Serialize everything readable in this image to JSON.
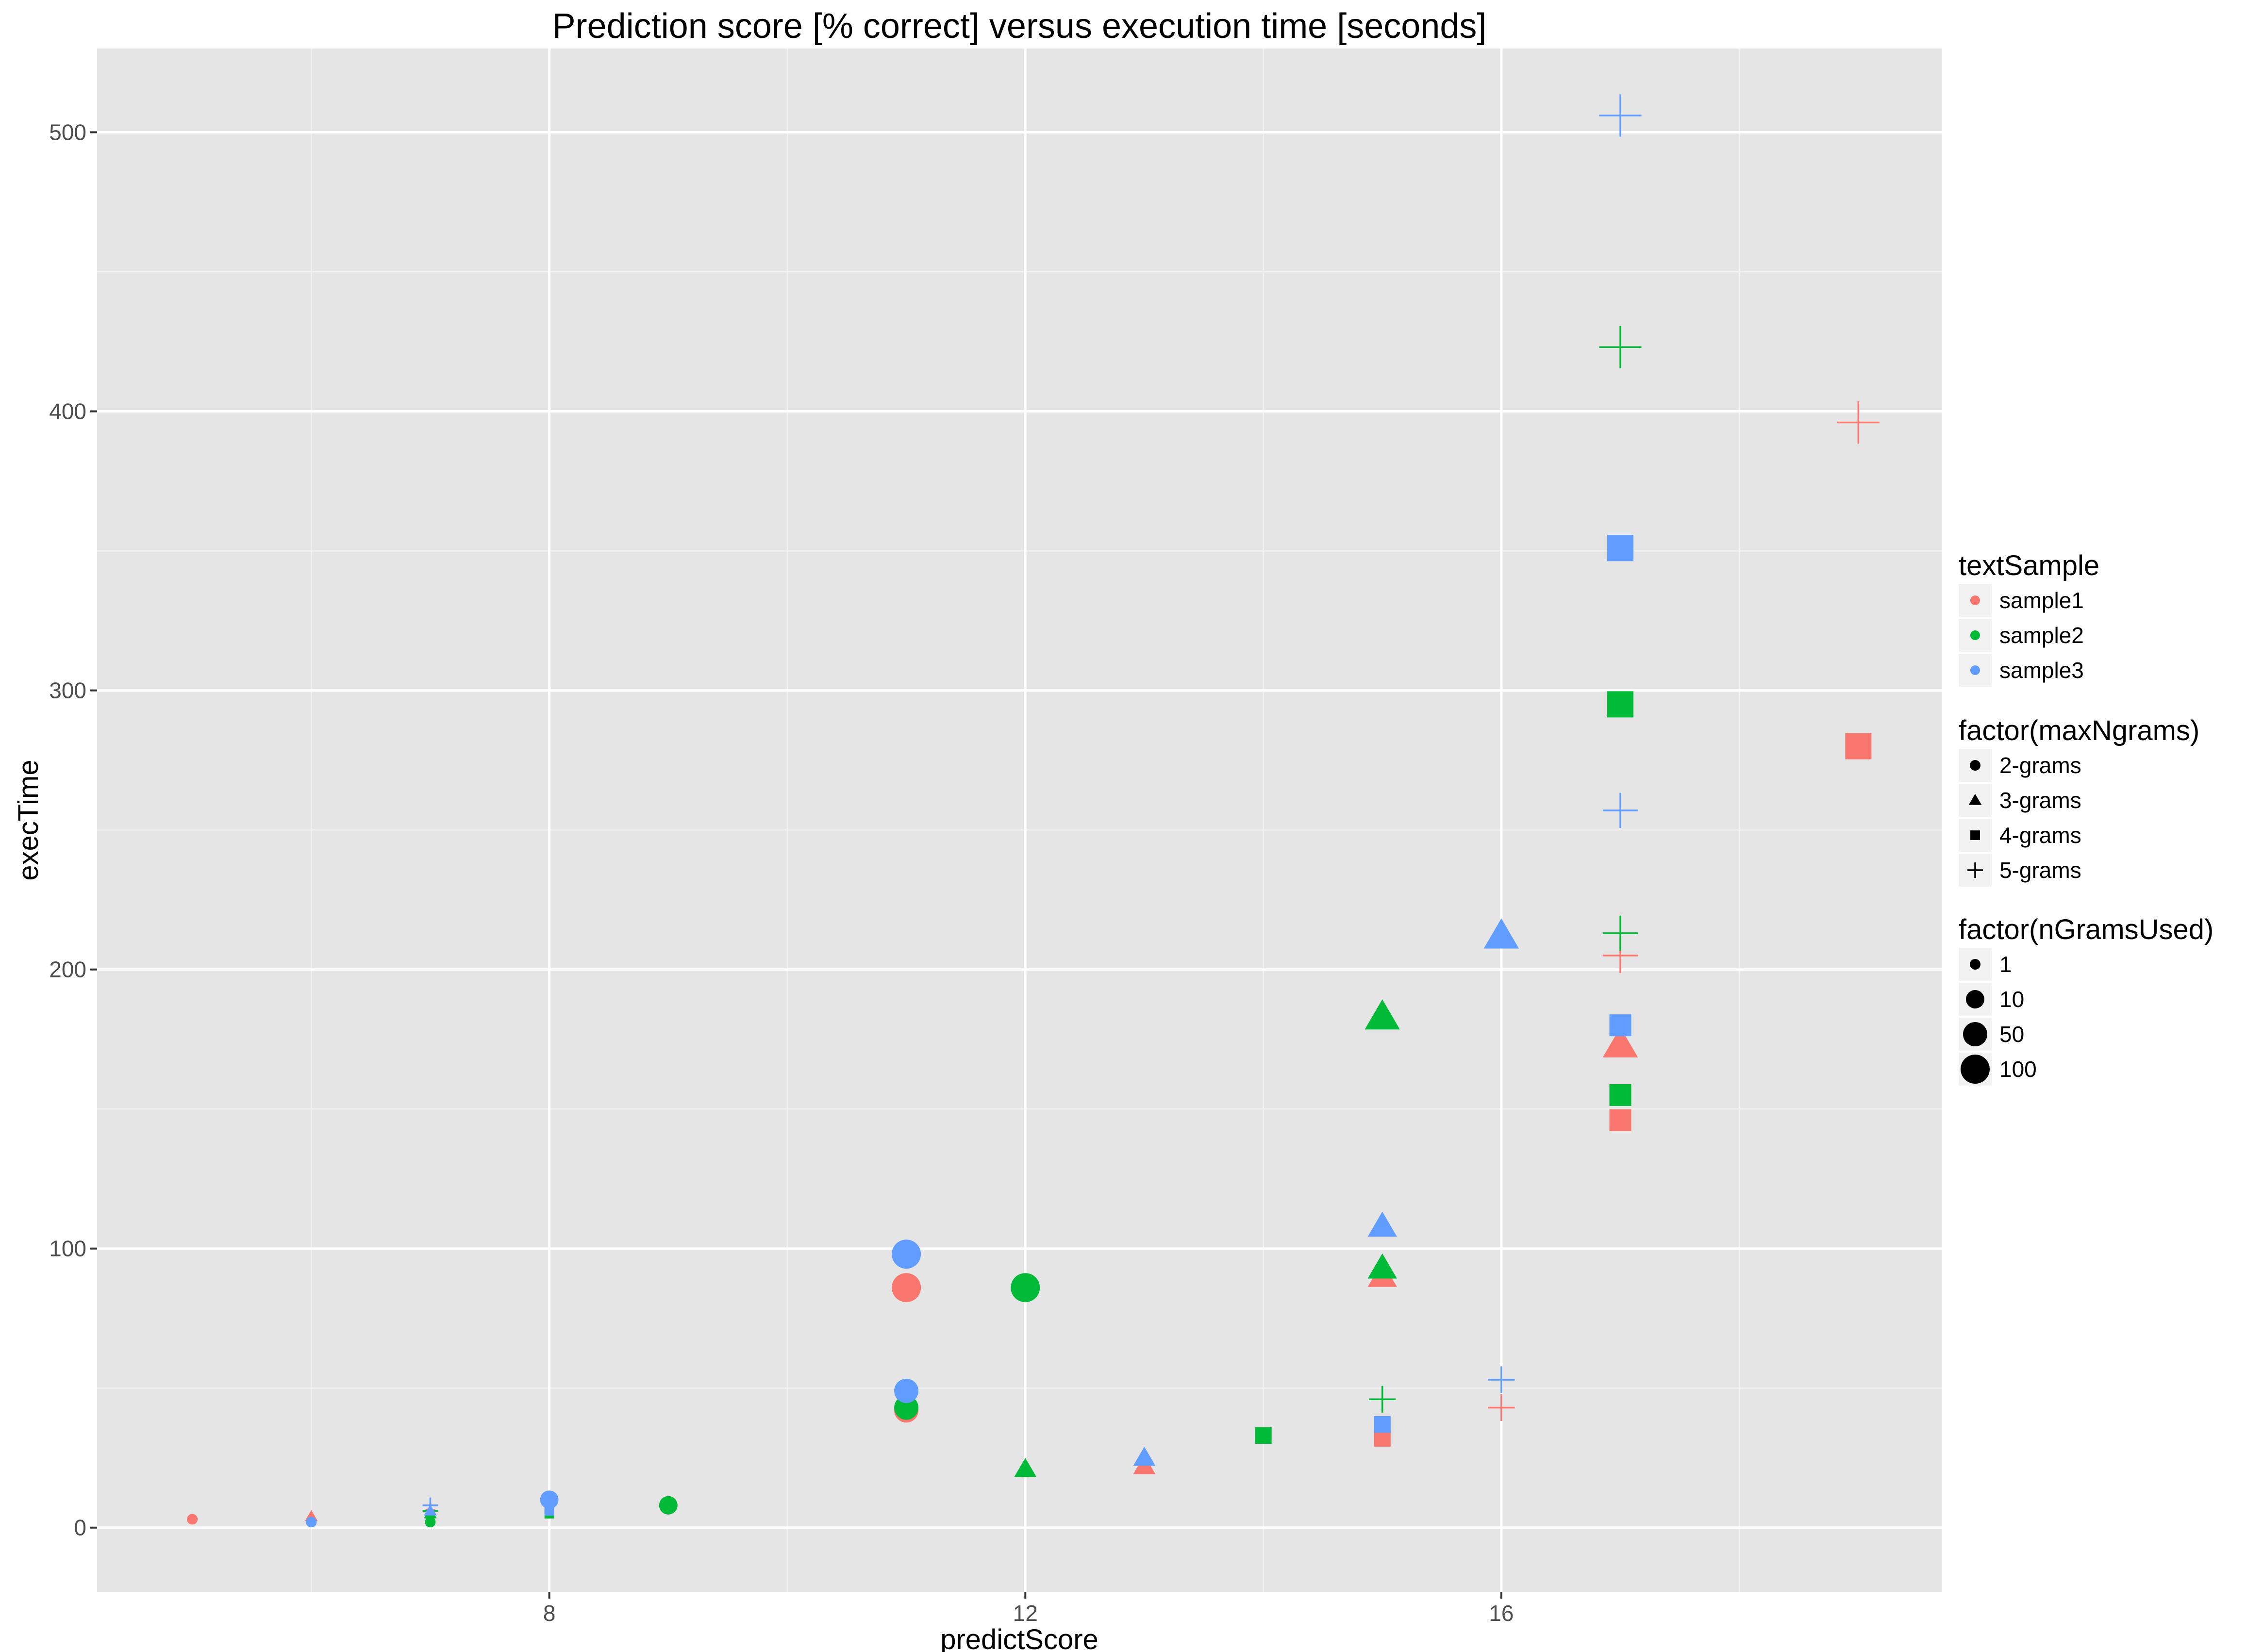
{
  "chart_data": {
    "type": "scatter",
    "title": "Prediction score [% correct] versus execution time [seconds]",
    "xlabel": "predictScore",
    "ylabel": "execTime",
    "xlim": [
      4.2,
      19.7
    ],
    "ylim": [
      -23,
      530
    ],
    "x_ticks": [
      8,
      12,
      16
    ],
    "x_minor_ticks": [
      6,
      10,
      14,
      18
    ],
    "y_ticks": [
      0,
      100,
      200,
      300,
      400,
      500
    ],
    "y_minor_ticks": [
      50,
      150,
      250,
      350,
      450
    ],
    "grid": true,
    "legend_position": "right",
    "legends": [
      {
        "title": "textSample",
        "kind": "color",
        "entries": [
          {
            "label": "sample1",
            "color": "#F8766D"
          },
          {
            "label": "sample2",
            "color": "#00BA38"
          },
          {
            "label": "sample3",
            "color": "#619CFF"
          }
        ]
      },
      {
        "title": "factor(maxNgrams)",
        "kind": "shape",
        "entries": [
          {
            "label": "2-grams",
            "shape": "circle"
          },
          {
            "label": "3-grams",
            "shape": "triangle"
          },
          {
            "label": "4-grams",
            "shape": "square"
          },
          {
            "label": "5-grams",
            "shape": "plus"
          }
        ]
      },
      {
        "title": "factor(nGramsUsed)",
        "kind": "size",
        "entries": [
          {
            "label": "1",
            "size": 1
          },
          {
            "label": "10",
            "size": 10
          },
          {
            "label": "50",
            "size": 50
          },
          {
            "label": "100",
            "size": 100
          }
        ]
      }
    ],
    "series": [
      {
        "name": "sample1",
        "color": "#F8766D",
        "points": [
          {
            "x": 5,
            "y": 3,
            "shape": "circle",
            "size": 1
          },
          {
            "x": 11,
            "y": 42,
            "shape": "circle",
            "size": 50
          },
          {
            "x": 11,
            "y": 86,
            "shape": "circle",
            "size": 100
          },
          {
            "x": 9,
            "y": 8,
            "shape": "circle",
            "size": 10
          },
          {
            "x": 6,
            "y": 4,
            "shape": "triangle",
            "size": 1
          },
          {
            "x": 13,
            "y": 22,
            "shape": "triangle",
            "size": 10
          },
          {
            "x": 15,
            "y": 90,
            "shape": "triangle",
            "size": 50
          },
          {
            "x": 17,
            "y": 173,
            "shape": "triangle",
            "size": 100
          },
          {
            "x": 7,
            "y": 5,
            "shape": "square",
            "size": 1
          },
          {
            "x": 15,
            "y": 32,
            "shape": "square",
            "size": 10
          },
          {
            "x": 17,
            "y": 146,
            "shape": "square",
            "size": 50
          },
          {
            "x": 19,
            "y": 280,
            "shape": "square",
            "size": 100
          },
          {
            "x": 7,
            "y": 6,
            "shape": "plus",
            "size": 1
          },
          {
            "x": 16,
            "y": 43,
            "shape": "plus",
            "size": 10
          },
          {
            "x": 17,
            "y": 205,
            "shape": "plus",
            "size": 50
          },
          {
            "x": 19,
            "y": 396,
            "shape": "plus",
            "size": 100
          }
        ]
      },
      {
        "name": "sample2",
        "color": "#00BA38",
        "points": [
          {
            "x": 7,
            "y": 2,
            "shape": "circle",
            "size": 1
          },
          {
            "x": 9,
            "y": 8,
            "shape": "circle",
            "size": 10
          },
          {
            "x": 11,
            "y": 43,
            "shape": "circle",
            "size": 50
          },
          {
            "x": 12,
            "y": 86,
            "shape": "circle",
            "size": 100
          },
          {
            "x": 7,
            "y": 5,
            "shape": "triangle",
            "size": 1
          },
          {
            "x": 12,
            "y": 21,
            "shape": "triangle",
            "size": 10
          },
          {
            "x": 15,
            "y": 93,
            "shape": "triangle",
            "size": 50
          },
          {
            "x": 15,
            "y": 183,
            "shape": "triangle",
            "size": 100
          },
          {
            "x": 8,
            "y": 5,
            "shape": "square",
            "size": 1
          },
          {
            "x": 14,
            "y": 33,
            "shape": "square",
            "size": 10
          },
          {
            "x": 17,
            "y": 155,
            "shape": "square",
            "size": 50
          },
          {
            "x": 17,
            "y": 295,
            "shape": "square",
            "size": 100
          },
          {
            "x": 7,
            "y": 6,
            "shape": "plus",
            "size": 1
          },
          {
            "x": 15,
            "y": 46,
            "shape": "plus",
            "size": 10
          },
          {
            "x": 17,
            "y": 213,
            "shape": "plus",
            "size": 50
          },
          {
            "x": 17,
            "y": 423,
            "shape": "plus",
            "size": 100
          }
        ]
      },
      {
        "name": "sample3",
        "color": "#619CFF",
        "points": [
          {
            "x": 6,
            "y": 2,
            "shape": "circle",
            "size": 1
          },
          {
            "x": 8,
            "y": 10,
            "shape": "circle",
            "size": 10
          },
          {
            "x": 11,
            "y": 49,
            "shape": "circle",
            "size": 50
          },
          {
            "x": 11,
            "y": 98,
            "shape": "circle",
            "size": 100
          },
          {
            "x": 7,
            "y": 6,
            "shape": "triangle",
            "size": 1
          },
          {
            "x": 13,
            "y": 25,
            "shape": "triangle",
            "size": 10
          },
          {
            "x": 15,
            "y": 108,
            "shape": "triangle",
            "size": 50
          },
          {
            "x": 16,
            "y": 212,
            "shape": "triangle",
            "size": 100
          },
          {
            "x": 8,
            "y": 6,
            "shape": "square",
            "size": 1
          },
          {
            "x": 15,
            "y": 37,
            "shape": "square",
            "size": 10
          },
          {
            "x": 17,
            "y": 180,
            "shape": "square",
            "size": 50
          },
          {
            "x": 17,
            "y": 351,
            "shape": "square",
            "size": 100
          },
          {
            "x": 7,
            "y": 8,
            "shape": "plus",
            "size": 1
          },
          {
            "x": 16,
            "y": 53,
            "shape": "plus",
            "size": 10
          },
          {
            "x": 17,
            "y": 257,
            "shape": "plus",
            "size": 50
          },
          {
            "x": 17,
            "y": 506,
            "shape": "plus",
            "size": 100
          }
        ]
      }
    ]
  }
}
